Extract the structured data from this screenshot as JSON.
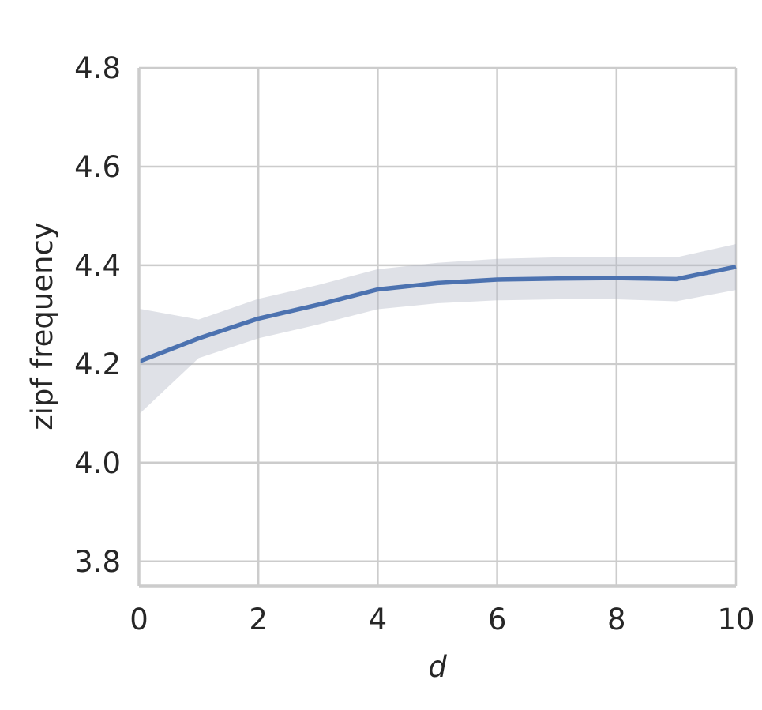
{
  "chart_data": {
    "type": "line",
    "title": "",
    "xlabel": "d",
    "ylabel": "zipf frequency",
    "xlim": [
      0,
      10
    ],
    "ylim": [
      3.75,
      4.8
    ],
    "xticks": [
      0,
      2,
      4,
      6,
      8,
      10
    ],
    "xtick_labels": [
      "0",
      "2",
      "4",
      "6",
      "8",
      "10"
    ],
    "yticks": [
      3.8,
      4.0,
      4.2,
      4.4,
      4.6,
      4.8
    ],
    "ytick_labels": [
      "3.8",
      "4.0",
      "4.2",
      "4.4",
      "4.6",
      "4.8"
    ],
    "grid": true,
    "legend": "none",
    "series": [
      {
        "x": [
          0,
          1,
          2,
          3,
          4,
          5,
          6,
          7,
          8,
          9,
          10
        ],
        "y": [
          4.205,
          4.252,
          4.292,
          4.32,
          4.351,
          4.364,
          4.371,
          4.373,
          4.374,
          4.372,
          4.397
        ],
        "ci_lower": [
          4.098,
          4.212,
          4.252,
          4.28,
          4.311,
          4.323,
          4.329,
          4.331,
          4.331,
          4.327,
          4.35
        ],
        "ci_upper": [
          4.312,
          4.29,
          4.332,
          4.36,
          4.392,
          4.405,
          4.413,
          4.416,
          4.416,
          4.416,
          4.443
        ],
        "color": "#4c72b0",
        "band_color": "#b0b4c2"
      }
    ],
    "colors": {
      "grid": "#cccccc",
      "axis": "#cccccc",
      "text": "#262626"
    }
  }
}
